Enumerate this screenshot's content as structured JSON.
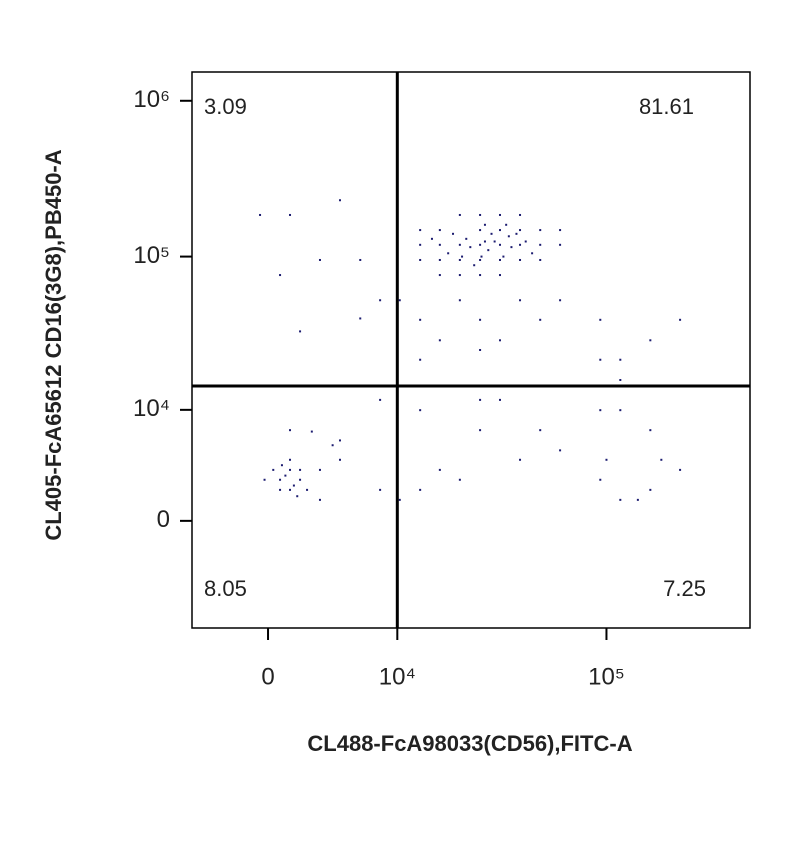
{
  "chart_data": {
    "type": "scatter",
    "xlabel": "CL488-FcA98033(CD56),FITC-A",
    "ylabel": "CL405-FcA65612 CD16(3G8),PB450-A",
    "xscale": "biexponential",
    "yscale": "biexponential",
    "xlim": [
      -4850,
      465000
    ],
    "ylim": [
      -9400,
      1530000
    ],
    "xticks": [
      0,
      {
        "value": 10000,
        "label": "10⁴"
      },
      {
        "value": 100000,
        "label": "10⁵"
      }
    ],
    "yticks": [
      0,
      {
        "value": 10000,
        "label": "10⁴"
      },
      {
        "value": 100000,
        "label": "10⁵"
      },
      {
        "value": 1000000,
        "label": "10⁶"
      }
    ],
    "gates": {
      "x": 10000,
      "y": 14500
    },
    "quadrant_percentages": {
      "upper_left": 3.09,
      "upper_right": 81.61,
      "lower_left": 8.05,
      "lower_right": 7.25
    },
    "color": "#1c1c70",
    "x": [
      13100,
      16400,
      20500,
      25600,
      31800,
      39500,
      49100,
      25600,
      20500,
      31800,
      39500,
      16400,
      13100,
      49100,
      60800,
      25600,
      31800,
      20500,
      39500,
      25600,
      16400,
      31800,
      49100,
      20500,
      25600,
      13100,
      39500,
      31800,
      60800,
      16400,
      22000,
      28000,
      35000,
      18000,
      27000,
      33000,
      24000,
      42000,
      19000,
      30000,
      36000,
      23000,
      29000,
      45000,
      15000,
      26000,
      34000,
      21000,
      38000,
      27000,
      10300,
      13100,
      16400,
      20500,
      25600,
      31800,
      39500,
      49100,
      60800,
      93600,
      116000,
      160000,
      220000,
      8070,
      6180,
      4540,
      -458,
      1270,
      690,
      3130,
      1870,
      6180,
      13100,
      25600,
      93600,
      116000,
      690,
      1270,
      1870,
      1270,
      690,
      1870,
      -200,
      1270,
      300,
      2300,
      1000,
      1500,
      800,
      1700,
      3130,
      4540,
      3130,
      4540,
      1270,
      2600,
      4000,
      8070,
      13100,
      25600,
      31800,
      49100,
      93600,
      116000,
      160000,
      93600,
      116000,
      160000,
      180000,
      100000,
      140000,
      220000,
      16400,
      20500,
      10300,
      13100,
      39500,
      25600,
      8070,
      60800
    ],
    "y": [
      148000,
      119000,
      185000,
      148000,
      119000,
      148000,
      119000,
      95100,
      119000,
      185000,
      95100,
      95100,
      119000,
      148000,
      119000,
      119000,
      148000,
      95100,
      119000,
      185000,
      148000,
      95100,
      95100,
      76100,
      76100,
      95100,
      185000,
      76100,
      148000,
      76100,
      130000,
      110000,
      135000,
      105000,
      160000,
      100000,
      88000,
      125000,
      140000,
      125000,
      115000,
      115000,
      140000,
      105000,
      130000,
      100000,
      160000,
      100000,
      140000,
      125000,
      52400,
      39200,
      28900,
      52400,
      39200,
      28900,
      52400,
      39200,
      52400,
      39200,
      21600,
      28900,
      39200,
      52400,
      95100,
      230000,
      185000,
      185000,
      76100,
      95100,
      33000,
      40000,
      21600,
      25000,
      21600,
      15900,
      2600,
      3330,
      2600,
      1910,
      1910,
      3330,
      2600,
      4150,
      3330,
      1910,
      2900,
      2200,
      3700,
      1500,
      1270,
      4150,
      3330,
      6000,
      7170,
      7000,
      5500,
      11700,
      9950,
      11700,
      11700,
      7170,
      9950,
      9950,
      7170,
      2600,
      1270,
      1910,
      4150,
      4150,
      1270,
      3330,
      3330,
      2600,
      1270,
      1910,
      4150,
      7170,
      1910,
      5000
    ]
  }
}
